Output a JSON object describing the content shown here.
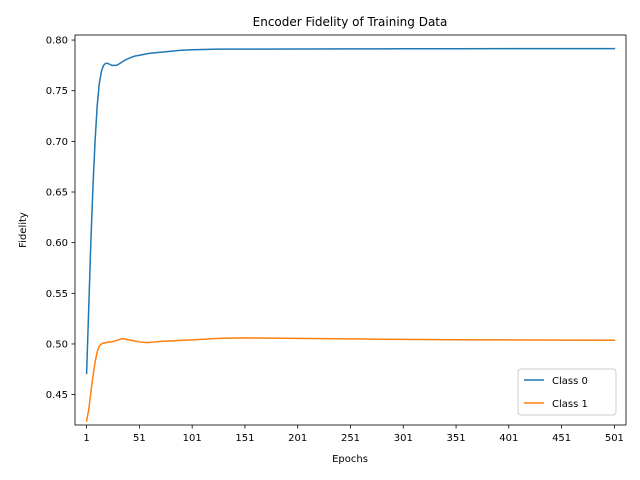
{
  "chart_data": {
    "type": "line",
    "title": "Encoder Fidelity of Training Data",
    "xlabel": "Epochs",
    "ylabel": "Fidelity",
    "xlim": [
      -10,
      512
    ],
    "ylim": [
      0.42,
      0.805
    ],
    "xticks": [
      1,
      51,
      101,
      151,
      201,
      251,
      301,
      351,
      401,
      451,
      501
    ],
    "yticks": [
      0.45,
      0.5,
      0.55,
      0.6,
      0.65,
      0.7,
      0.75,
      0.8
    ],
    "ytick_labels": [
      "0.45",
      "0.50",
      "0.55",
      "0.60",
      "0.65",
      "0.70",
      "0.75",
      "0.80"
    ],
    "grid": false,
    "legend_position": "lower-right",
    "series": [
      {
        "name": "Class 0",
        "color": "#1f77b4",
        "x": [
          1,
          3,
          5,
          7,
          9,
          11,
          13,
          15,
          17,
          19,
          21,
          23,
          25,
          27,
          29,
          31,
          34,
          37,
          41,
          46,
          51,
          61,
          71,
          81,
          91,
          101,
          126,
          151,
          201,
          251,
          301,
          351,
          401,
          451,
          501
        ],
        "y": [
          0.471,
          0.535,
          0.6,
          0.655,
          0.7,
          0.735,
          0.757,
          0.769,
          0.775,
          0.777,
          0.777,
          0.776,
          0.775,
          0.775,
          0.775,
          0.776,
          0.778,
          0.78,
          0.782,
          0.784,
          0.785,
          0.787,
          0.788,
          0.789,
          0.79,
          0.7905,
          0.791,
          0.791,
          0.7912,
          0.7913,
          0.7914,
          0.7914,
          0.7915,
          0.7915,
          0.7915
        ]
      },
      {
        "name": "Class 1",
        "color": "#ff7f0e",
        "x": [
          1,
          3,
          5,
          7,
          9,
          11,
          13,
          15,
          17,
          19,
          21,
          23,
          25,
          28,
          31,
          34,
          37,
          41,
          46,
          51,
          56,
          61,
          66,
          71,
          81,
          91,
          101,
          126,
          151,
          201,
          251,
          301,
          351,
          401,
          451,
          501
        ],
        "y": [
          0.424,
          0.435,
          0.452,
          0.468,
          0.482,
          0.492,
          0.498,
          0.5,
          0.501,
          0.501,
          0.502,
          0.502,
          0.502,
          0.503,
          0.504,
          0.505,
          0.505,
          0.504,
          0.503,
          0.502,
          0.5015,
          0.5015,
          0.502,
          0.5025,
          0.503,
          0.5035,
          0.504,
          0.5055,
          0.506,
          0.5055,
          0.505,
          0.5045,
          0.5042,
          0.504,
          0.5038,
          0.5037
        ]
      }
    ]
  }
}
